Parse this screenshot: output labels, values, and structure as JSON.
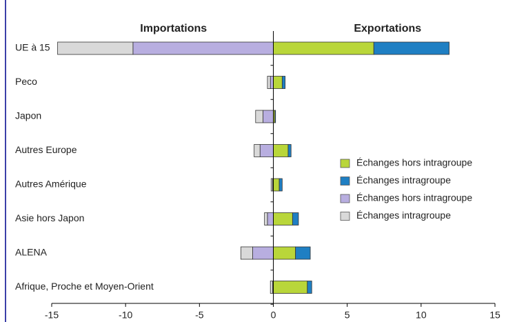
{
  "chart_data": {
    "type": "diverging-stacked-bar",
    "annotations": [
      "Importations",
      "Exportations"
    ],
    "categories": [
      "UE à 15",
      "Peco",
      "Japon",
      "Autres Europe",
      "Autres Amérique",
      "Asie hors Japon",
      "ALENA",
      "Afrique, Proche et Moyen-Orient"
    ],
    "series": [
      {
        "name": "Échanges hors intragroupe",
        "color": "#b9d63a",
        "values": [
          6.8,
          0.6,
          0.1,
          1.0,
          0.4,
          1.3,
          1.5,
          2.3
        ]
      },
      {
        "name": "Échanges intragroupe",
        "color": "#1f7fc3",
        "values": [
          5.1,
          0.2,
          0.05,
          0.2,
          0.2,
          0.4,
          1.0,
          0.3
        ]
      },
      {
        "name": "Échanges hors intragroupe",
        "color": "#b8aee0",
        "values": [
          -9.5,
          -0.2,
          -0.7,
          -0.9,
          -0.05,
          -0.4,
          -1.4,
          -0.05
        ]
      },
      {
        "name": "Échanges intragroupe",
        "color": "#d9d9d9",
        "values": [
          -5.1,
          -0.2,
          -0.5,
          -0.4,
          -0.1,
          -0.2,
          -0.8,
          -0.15
        ]
      }
    ],
    "xlim": [
      -15,
      15
    ],
    "xticks": [
      -15,
      -10,
      -5,
      0,
      5,
      10,
      15
    ],
    "legend": "right"
  }
}
